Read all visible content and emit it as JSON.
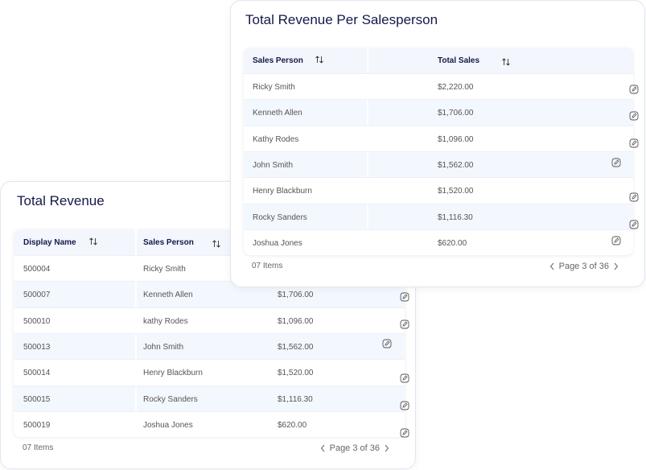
{
  "back_card": {
    "title": "Total Revenue",
    "headers": [
      "Display Name",
      "Sales Person"
    ],
    "rows": [
      {
        "id": "500004",
        "name": "Ricky Smith"
      },
      {
        "id": "500007",
        "name": "Kenneth Allen",
        "total": "$1,706.00"
      },
      {
        "id": "500010",
        "name": "kathy Rodes",
        "total": "$1,096.00"
      },
      {
        "id": "500013",
        "name": "John Smith",
        "total": "$1,562.00"
      },
      {
        "id": "500014",
        "name": "Henry Blackburn",
        "total": "$1,520.00"
      },
      {
        "id": "500015",
        "name": "Rocky Sanders",
        "total": "$1,116.30"
      },
      {
        "id": "500019",
        "name": "Joshua Jones",
        "total": "$620.00"
      }
    ],
    "items": "07 Items",
    "page": "Page 3 of 36"
  },
  "front_card": {
    "title": "Total Revenue Per Salesperson",
    "headers": [
      "Sales Person",
      "Total Sales"
    ],
    "rows": [
      {
        "name": "Ricky Smith",
        "total": "$2,220.00"
      },
      {
        "name": "Kenneth Allen",
        "total": "$1,706.00"
      },
      {
        "name": "Kathy Rodes",
        "total": "$1,096.00"
      },
      {
        "name": "John Smith",
        "total": "$1,562.00"
      },
      {
        "name": "Henry Blackburn",
        "total": "$1,520.00"
      },
      {
        "name": "Rocky Sanders",
        "total": "$1,116.30"
      },
      {
        "name": "Joshua Jones",
        "total": "$620.00"
      }
    ],
    "items": "07 Items",
    "page": "Page 3 of 36"
  }
}
